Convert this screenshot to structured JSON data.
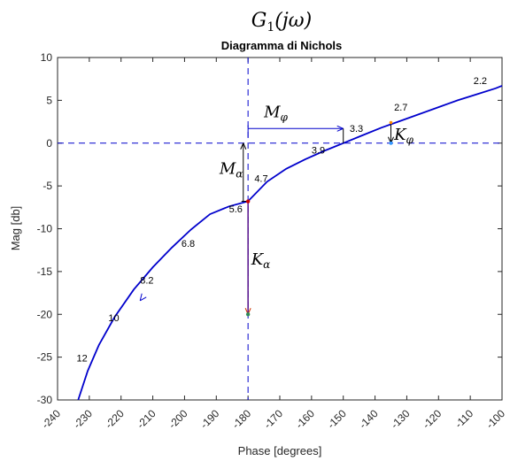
{
  "heading": {
    "base": "G",
    "sub": "1",
    "arg": "(jω)"
  },
  "chart_data": {
    "type": "line",
    "title": "Diagramma di Nichols",
    "xlabel": "Phase [degrees]",
    "ylabel": "Mag [db]",
    "xlim": [
      -240,
      -100
    ],
    "ylim": [
      -30,
      10
    ],
    "xticks": [
      -240,
      -230,
      -220,
      -210,
      -200,
      -190,
      -180,
      -170,
      -160,
      -150,
      -140,
      -130,
      -120,
      -110,
      -100
    ],
    "yticks": [
      10,
      5,
      0,
      -5,
      -10,
      -15,
      -20,
      -25,
      -30
    ],
    "grid": false,
    "curve": {
      "x": [
        -233.5,
        -230.5,
        -227,
        -222,
        -216,
        -210,
        -204,
        -198,
        -192,
        -186,
        -180,
        -174,
        -168,
        -162,
        -156,
        -150,
        -144,
        -138,
        -132,
        -126,
        -120,
        -114,
        -108,
        -102,
        -100
      ],
      "y": [
        -30,
        -26.6,
        -23.6,
        -20.3,
        -17.1,
        -14.5,
        -12.2,
        -10.1,
        -8.3,
        -7.4,
        -6.8,
        -4.5,
        -3.0,
        -1.9,
        -0.9,
        0,
        0.9,
        1.8,
        2.6,
        3.4,
        4.2,
        5.0,
        5.7,
        6.4,
        6.7
      ],
      "color": "#0000cc"
    },
    "freq_labels": [
      {
        "text": "12",
        "x": -234,
        "y": -25.5
      },
      {
        "text": "10",
        "x": -224,
        "y": -20.8
      },
      {
        "text": "8.2",
        "x": -214,
        "y": -16.4
      },
      {
        "text": "6.8",
        "x": -201,
        "y": -12.1
      },
      {
        "text": "5.6",
        "x": -186,
        "y": -8.1
      },
      {
        "text": "4.7",
        "x": -178,
        "y": -4.5
      },
      {
        "text": "3.9",
        "x": -160,
        "y": -1.2
      },
      {
        "text": "3.3",
        "x": -148,
        "y": 1.3
      },
      {
        "text": "2.7",
        "x": -134,
        "y": 3.8
      },
      {
        "text": "2.2",
        "x": -109,
        "y": 6.9
      }
    ],
    "reference_lines": {
      "phase": -180,
      "mag": 0,
      "color": "#0000cc"
    },
    "annotations": {
      "M_phi": {
        "label": "M",
        "sub": "φ",
        "from": [
          -180,
          1.7
        ],
        "to": [
          -150,
          1.7
        ]
      },
      "M_alpha": {
        "label": "M",
        "sub": "α",
        "from": [
          -181.5,
          -6.8
        ],
        "to": [
          -181.5,
          0
        ]
      },
      "K_phi": {
        "label": "K",
        "sub": "φ",
        "from": [
          -135,
          2.4
        ],
        "to": [
          -135,
          0
        ]
      },
      "K_alpha": {
        "label": "K",
        "sub": "α",
        "from": [
          -180,
          -6.8
        ],
        "to": [
          -180,
          -20
        ]
      }
    }
  }
}
